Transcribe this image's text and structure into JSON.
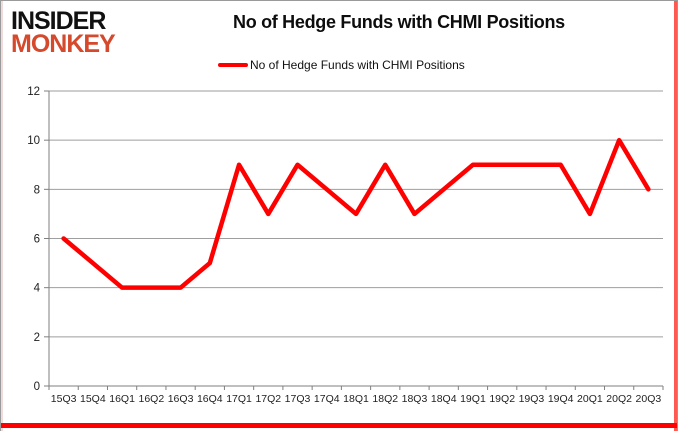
{
  "logo": {
    "line1": "INSIDER",
    "line2": "MONKEY"
  },
  "title": "No of Hedge Funds with CHMI Positions",
  "legend": {
    "label": "No of Hedge Funds with CHMI Positions"
  },
  "colors": {
    "line": "#fe0000",
    "logo_red": "#d5492c",
    "grid": "#9e9e9e",
    "axis": "#7f7f7f",
    "tick_text": "#1f1f1f",
    "frame_red": "#fe0000"
  },
  "chart_data": {
    "type": "line",
    "title": "No of Hedge Funds with CHMI Positions",
    "categories": [
      "15Q3",
      "15Q4",
      "16Q1",
      "16Q2",
      "16Q3",
      "16Q4",
      "17Q1",
      "17Q2",
      "17Q3",
      "17Q4",
      "18Q1",
      "18Q2",
      "18Q3",
      "18Q4",
      "19Q1",
      "19Q2",
      "19Q3",
      "19Q4",
      "20Q1",
      "20Q2",
      "20Q3"
    ],
    "series": [
      {
        "name": "No of Hedge Funds with CHMI Positions",
        "color": "#fe0000",
        "values": [
          6,
          5,
          4,
          4,
          4,
          5,
          9,
          7,
          9,
          8,
          7,
          9,
          7,
          8,
          9,
          9,
          9,
          9,
          7,
          10,
          8
        ]
      }
    ],
    "xlabel": "",
    "ylabel": "",
    "ylim": [
      0,
      12
    ],
    "yticks": [
      0,
      2,
      4,
      6,
      8,
      10,
      12
    ],
    "grid": true,
    "legend_position": "top"
  }
}
